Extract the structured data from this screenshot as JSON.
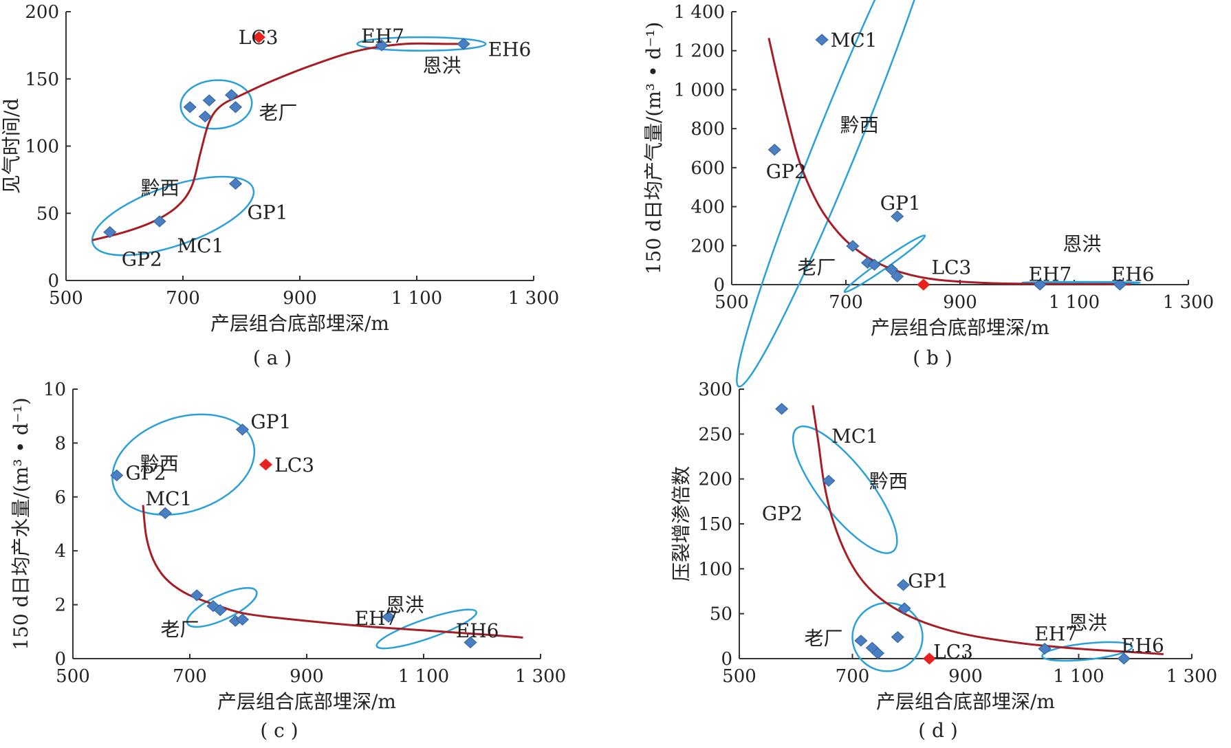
{
  "colors": {
    "marker": "#4a7fc1",
    "marker_stroke": "#2f5f9e",
    "highlight": "#e8231f",
    "fit_curve": "#a61d24",
    "group_ellipse": "#2aa0d8",
    "axis": "#333333"
  },
  "chart_data": [
    {
      "id": "a",
      "type": "scatter",
      "panel_label": "( a )",
      "xlabel": "产层组合底部埋深/m",
      "ylabel": "见气时间/d",
      "xlim": [
        500,
        1300
      ],
      "ylim": [
        0,
        200
      ],
      "xticks": [
        500,
        700,
        900,
        1100,
        1300
      ],
      "xtick_labels": [
        "500",
        "700",
        "900",
        "1 100",
        "1 300"
      ],
      "yticks": [
        0,
        50,
        100,
        150,
        200
      ],
      "ytick_labels": [
        "0",
        "50",
        "100",
        "150",
        "200"
      ],
      "points": [
        {
          "label": "GP2",
          "x": 575,
          "y": 36
        },
        {
          "label": "",
          "x": 660,
          "y": 44
        },
        {
          "label": "GP1",
          "x": 790,
          "y": 72
        },
        {
          "label": "",
          "x": 712,
          "y": 129
        },
        {
          "label": "",
          "x": 745,
          "y": 134
        },
        {
          "label": "",
          "x": 738,
          "y": 122
        },
        {
          "label": "",
          "x": 783,
          "y": 138
        },
        {
          "label": "",
          "x": 790,
          "y": 129
        },
        {
          "label": "EH7",
          "x": 1040,
          "y": 175
        },
        {
          "label": "EH6",
          "x": 1180,
          "y": 176
        },
        {
          "label": "LC3",
          "x": 830,
          "y": 181,
          "highlight": true
        }
      ],
      "fit_curve": [
        [
          545,
          30
        ],
        [
          600,
          36
        ],
        [
          650,
          44
        ],
        [
          690,
          55
        ],
        [
          715,
          70
        ],
        [
          730,
          95
        ],
        [
          745,
          118
        ],
        [
          765,
          130
        ],
        [
          800,
          138
        ],
        [
          850,
          148
        ],
        [
          920,
          160
        ],
        [
          1000,
          171
        ],
        [
          1080,
          176
        ],
        [
          1150,
          176
        ],
        [
          1190,
          176
        ]
      ],
      "annotations": [
        {
          "text": "LC3",
          "x": 795,
          "y": 181
        },
        {
          "text": "EH7",
          "x": 1005,
          "y": 182
        },
        {
          "text": "EH6",
          "x": 1222,
          "y": 172
        },
        {
          "text": "恩洪",
          "x": 1110,
          "y": 160
        },
        {
          "text": "老厂",
          "x": 830,
          "y": 125
        },
        {
          "text": "黔西",
          "x": 628,
          "y": 69
        },
        {
          "text": "GP1",
          "x": 810,
          "y": 51
        },
        {
          "text": "MC1",
          "x": 690,
          "y": 26
        },
        {
          "text": "GP2",
          "x": 595,
          "y": 16
        }
      ],
      "groups": [
        {
          "name": "黔西",
          "cx": 683,
          "cy": 48,
          "rx": 145,
          "ry": 22,
          "rot": -19
        },
        {
          "name": "老厂",
          "cx": 757,
          "cy": 131,
          "rx": 61,
          "ry": 18,
          "rot": -4
        },
        {
          "name": "恩洪",
          "cx": 1108,
          "cy": 176,
          "rx": 110,
          "ry": 5,
          "rot": 0
        }
      ]
    },
    {
      "id": "b",
      "type": "scatter",
      "panel_label": "( b )",
      "xlabel": "产层组合底部埋深/m",
      "ylabel": "150 d日均产气量/(m³ • d⁻¹)",
      "xlim": [
        500,
        1300
      ],
      "ylim": [
        0,
        1400
      ],
      "xticks": [
        500,
        700,
        900,
        1100,
        1300
      ],
      "xtick_labels": [
        "500",
        "700",
        "900",
        "1 100",
        "1 300"
      ],
      "yticks": [
        0,
        200,
        400,
        600,
        800,
        1000,
        1200,
        1400
      ],
      "ytick_labels": [
        "0",
        "200",
        "400",
        "600",
        "800",
        "1 000",
        "1 200",
        "1 400"
      ],
      "points": [
        {
          "label": "MC1",
          "x": 658,
          "y": 1256
        },
        {
          "label": "GP2",
          "x": 575,
          "y": 692
        },
        {
          "label": "GP1",
          "x": 790,
          "y": 350
        },
        {
          "label": "",
          "x": 712,
          "y": 198
        },
        {
          "label": "",
          "x": 738,
          "y": 112
        },
        {
          "label": "",
          "x": 750,
          "y": 102
        },
        {
          "label": "",
          "x": 780,
          "y": 78
        },
        {
          "label": "",
          "x": 790,
          "y": 42
        },
        {
          "label": "EH7",
          "x": 1040,
          "y": 0
        },
        {
          "label": "EH6",
          "x": 1180,
          "y": 0
        },
        {
          "label": "LC3",
          "x": 836,
          "y": 0,
          "highlight": true
        }
      ],
      "fit_curve": [
        [
          565,
          1265
        ],
        [
          580,
          1070
        ],
        [
          600,
          830
        ],
        [
          620,
          620
        ],
        [
          650,
          420
        ],
        [
          680,
          290
        ],
        [
          710,
          200
        ],
        [
          750,
          120
        ],
        [
          800,
          60
        ],
        [
          860,
          25
        ],
        [
          950,
          8
        ],
        [
          1050,
          3
        ],
        [
          1150,
          2
        ],
        [
          1200,
          1
        ]
      ],
      "annotations": [
        {
          "text": "MC1",
          "x": 673,
          "y": 1256
        },
        {
          "text": "黔西",
          "x": 690,
          "y": 820
        },
        {
          "text": "GP2",
          "x": 560,
          "y": 582
        },
        {
          "text": "GP1",
          "x": 760,
          "y": 420
        },
        {
          "text": "老厂",
          "x": 615,
          "y": 90
        },
        {
          "text": "LC3",
          "x": 850,
          "y": 90
        },
        {
          "text": "恩洪",
          "x": 1080,
          "y": 210
        },
        {
          "text": "EH7",
          "x": 1020,
          "y": 55
        },
        {
          "text": "EH6",
          "x": 1165,
          "y": 55
        }
      ],
      "groups": [
        {
          "name": "黔西",
          "cx": 692,
          "cy": 780,
          "rx": 480,
          "ry": 110,
          "rot": -68
        },
        {
          "name": "老厂",
          "cx": 768,
          "cy": 107,
          "rx": 86,
          "ry": 22,
          "rot": -35
        },
        {
          "name": "恩洪",
          "cx": 1112,
          "cy": 10,
          "rx": 103,
          "ry": 4,
          "rot": 0
        }
      ]
    },
    {
      "id": "c",
      "type": "scatter",
      "panel_label": "( c )",
      "xlabel": "产层组合底部埋深/m",
      "ylabel": "150 d日均产水量/(m³ • d⁻¹)",
      "xlim": [
        500,
        1300
      ],
      "ylim": [
        0,
        10
      ],
      "xticks": [
        500,
        700,
        900,
        1100,
        1300
      ],
      "xtick_labels": [
        "500",
        "700",
        "900",
        "1 100",
        "1 300"
      ],
      "yticks": [
        0,
        2,
        4,
        6,
        8,
        10
      ],
      "ytick_labels": [
        "0",
        "2",
        "4",
        "6",
        "8",
        "10"
      ],
      "points": [
        {
          "label": "GP1",
          "x": 790,
          "y": 8.5
        },
        {
          "label": "GP2",
          "x": 575,
          "y": 6.8
        },
        {
          "label": "MC1",
          "x": 658,
          "y": 5.4
        },
        {
          "label": "LC3",
          "x": 830,
          "y": 7.2,
          "highlight": true
        },
        {
          "label": "",
          "x": 712,
          "y": 2.35
        },
        {
          "label": "",
          "x": 740,
          "y": 1.95
        },
        {
          "label": "",
          "x": 752,
          "y": 1.8
        },
        {
          "label": "",
          "x": 778,
          "y": 1.4
        },
        {
          "label": "",
          "x": 790,
          "y": 1.45
        },
        {
          "label": "EH7",
          "x": 1040,
          "y": 1.55
        },
        {
          "label": "EH6",
          "x": 1180,
          "y": 0.6
        }
      ],
      "fit_curve": [
        [
          620,
          5.7
        ],
        [
          625,
          4.6
        ],
        [
          635,
          3.8
        ],
        [
          650,
          3.2
        ],
        [
          670,
          2.75
        ],
        [
          700,
          2.35
        ],
        [
          750,
          1.95
        ],
        [
          800,
          1.65
        ],
        [
          900,
          1.4
        ],
        [
          1000,
          1.2
        ],
        [
          1100,
          1.05
        ],
        [
          1200,
          0.9
        ],
        [
          1270,
          0.78
        ]
      ],
      "annotations": [
        {
          "text": "GP1",
          "x": 804,
          "y": 8.8
        },
        {
          "text": "黔西",
          "x": 615,
          "y": 7.25
        },
        {
          "text": "LC3",
          "x": 845,
          "y": 7.2
        },
        {
          "text": "GP2",
          "x": 590,
          "y": 6.9
        },
        {
          "text": "MC1",
          "x": 624,
          "y": 5.95
        },
        {
          "text": "老厂",
          "x": 650,
          "y": 1.1
        },
        {
          "text": "恩洪",
          "x": 1035,
          "y": 2.0
        },
        {
          "text": "EH7",
          "x": 982,
          "y": 1.5
        },
        {
          "text": "EH6",
          "x": 1155,
          "y": 1.05
        }
      ],
      "groups": [
        {
          "name": "黔西",
          "cx": 689,
          "cy": 7.2,
          "rx": 125,
          "ry": 1.75,
          "rot": -18
        },
        {
          "name": "老厂",
          "cx": 755,
          "cy": 1.9,
          "rx": 65,
          "ry": 0.45,
          "rot": -25
        },
        {
          "name": "恩洪",
          "cx": 1105,
          "cy": 1.1,
          "rx": 90,
          "ry": 0.36,
          "rot": -19
        }
      ]
    },
    {
      "id": "d",
      "type": "scatter",
      "panel_label": "( d )",
      "xlabel": "产层组合底部埋深/m",
      "ylabel": "压裂增渗倍数",
      "xlim": [
        500,
        1300
      ],
      "ylim": [
        0,
        300
      ],
      "xticks": [
        500,
        700,
        900,
        1100,
        1300
      ],
      "xtick_labels": [
        "500",
        "700",
        "900",
        "1 100",
        "1 300"
      ],
      "yticks": [
        0,
        50,
        100,
        150,
        200,
        250,
        300
      ],
      "ytick_labels": [
        "0",
        "50",
        "100",
        "150",
        "200",
        "250",
        "300"
      ],
      "points": [
        {
          "label": "GP2",
          "x": 575,
          "y": 278
        },
        {
          "label": "MC1",
          "x": 658,
          "y": 198
        },
        {
          "label": "GP1",
          "x": 790,
          "y": 82
        },
        {
          "label": "",
          "x": 792,
          "y": 56
        },
        {
          "label": "",
          "x": 715,
          "y": 20
        },
        {
          "label": "",
          "x": 735,
          "y": 12
        },
        {
          "label": "",
          "x": 745,
          "y": 6
        },
        {
          "label": "",
          "x": 780,
          "y": 24
        },
        {
          "label": "EH7",
          "x": 1040,
          "y": 11
        },
        {
          "label": "EH6",
          "x": 1180,
          "y": 0
        },
        {
          "label": "LC3",
          "x": 836,
          "y": 0,
          "highlight": true
        }
      ],
      "fit_curve": [
        [
          630,
          282
        ],
        [
          640,
          240
        ],
        [
          650,
          195
        ],
        [
          665,
          155
        ],
        [
          690,
          115
        ],
        [
          720,
          85
        ],
        [
          760,
          62
        ],
        [
          820,
          42
        ],
        [
          900,
          27
        ],
        [
          1000,
          17
        ],
        [
          1100,
          11
        ],
        [
          1200,
          7
        ],
        [
          1250,
          5
        ]
      ],
      "annotations": [
        {
          "text": "MC1",
          "x": 663,
          "y": 248
        },
        {
          "text": "黔西",
          "x": 730,
          "y": 198
        },
        {
          "text": "GP2",
          "x": 540,
          "y": 162
        },
        {
          "text": "GP1",
          "x": 798,
          "y": 87
        },
        {
          "text": "老厂",
          "x": 615,
          "y": 23
        },
        {
          "text": "LC3",
          "x": 843,
          "y": 8
        },
        {
          "text": "恩洪",
          "x": 1082,
          "y": 40
        },
        {
          "text": "EH7",
          "x": 1022,
          "y": 28
        },
        {
          "text": "EH6",
          "x": 1175,
          "y": 15
        }
      ],
      "groups": [
        {
          "name": "黔西",
          "cx": 687,
          "cy": 188,
          "rx": 138,
          "ry": 28,
          "rot": 52
        },
        {
          "name": "老厂",
          "cx": 762,
          "cy": 24,
          "rx": 62,
          "ry": 38,
          "rot": -5
        },
        {
          "name": "恩洪",
          "cx": 1115,
          "cy": 8,
          "rx": 80,
          "ry": 9,
          "rot": -6
        }
      ]
    }
  ]
}
